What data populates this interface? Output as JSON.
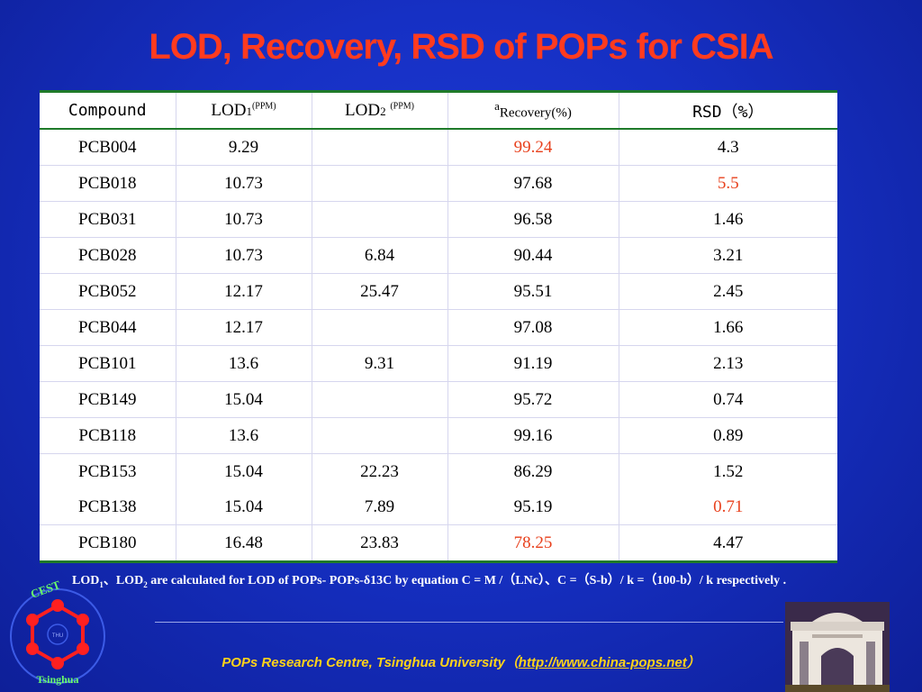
{
  "title": "LOD, Recovery, RSD of POPs for CSIA",
  "table": {
    "headers": {
      "compound": "Compound",
      "lod1_main": "LOD",
      "lod1_sub": "1",
      "lod1_unit": "(PPM)",
      "lod2_main": "LOD",
      "lod2_sub": "2",
      "lod2_unit": "(PPM)",
      "recovery_sup": "a",
      "recovery": "Recovery(%)",
      "rsd": "RSD（%）"
    },
    "rows": [
      {
        "compound": "PCB004",
        "lod1": "9.29",
        "lod2": "",
        "recovery": "99.24",
        "rsd": "4.3"
      },
      {
        "compound": "PCB018",
        "lod1": "10.73",
        "lod2": "",
        "recovery": "97.68",
        "rsd": "5.5"
      },
      {
        "compound": "PCB031",
        "lod1": "10.73",
        "lod2": "",
        "recovery": "96.58",
        "rsd": "1.46"
      },
      {
        "compound": "PCB028",
        "lod1": "10.73",
        "lod2": "6.84",
        "recovery": "90.44",
        "rsd": "3.21"
      },
      {
        "compound": "PCB052",
        "lod1": "12.17",
        "lod2": "25.47",
        "recovery": "95.51",
        "rsd": "2.45"
      },
      {
        "compound": "PCB044",
        "lod1": "12.17",
        "lod2": "",
        "recovery": "97.08",
        "rsd": "1.66"
      },
      {
        "compound": "PCB101",
        "lod1": "13.6",
        "lod2": "9.31",
        "recovery": "91.19",
        "rsd": "2.13"
      },
      {
        "compound": "PCB149",
        "lod1": "15.04",
        "lod2": "",
        "recovery": "95.72",
        "rsd": "0.74"
      },
      {
        "compound": "PCB118",
        "lod1": "13.6",
        "lod2": "",
        "recovery": "99.16",
        "rsd": "0.89"
      },
      {
        "compound": "PCB153",
        "lod1": "15.04",
        "lod2": "22.23",
        "recovery": "86.29",
        "rsd": "1.52"
      },
      {
        "compound": "PCB138",
        "lod1": "15.04",
        "lod2": "7.89",
        "recovery": "95.19",
        "rsd": "0.71"
      },
      {
        "compound": "PCB180",
        "lod1": "16.48",
        "lod2": "23.83",
        "recovery": "78.25",
        "rsd": "4.47"
      }
    ],
    "highlight_color": "#e8401c"
  },
  "footnote": {
    "marker": "a",
    "lod": "LOD",
    "sub1": "1",
    "sep": "、",
    "sub2": "2",
    "text": " are calculated for LOD of POPs- POPs-δ13C  by equation C = M /（LNc）、C =（S-b）/ k =（100-b）/ k respectively ."
  },
  "footer": {
    "text": "POPs Research Centre, Tsinghua University（",
    "link": "http://www.china-pops.net",
    "close": "）"
  },
  "logo": {
    "top_text": "CEST",
    "bottom_text": "Tsinghua",
    "center_text": "THU"
  },
  "colors": {
    "background": "#1630c4",
    "title": "#ff3b1f",
    "footer": "#ffd21a",
    "table_rule": "#1f7a2a"
  }
}
